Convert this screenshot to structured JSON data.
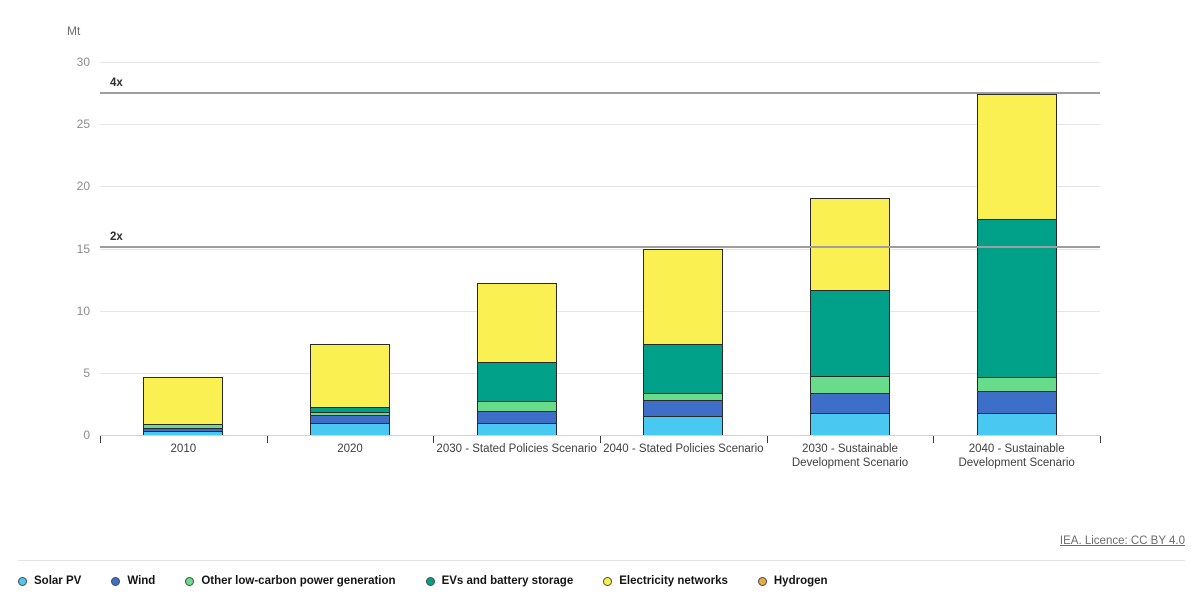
{
  "axis": {
    "unit_label": "Mt"
  },
  "footer": {
    "license_label": "IEA. Licence: CC BY 4.0"
  },
  "colors": {
    "grid": "#e6e6e6",
    "baseline": "#ccd3db",
    "reference_line": "#9e9e9e",
    "segment_border": "#2a2a2a"
  },
  "chart_data": {
    "type": "bar",
    "stacked": true,
    "title": "",
    "xlabel": "",
    "ylabel": "Mt",
    "ylim": [
      0,
      30
    ],
    "yticks": [
      0,
      5,
      10,
      15,
      20,
      25,
      30
    ],
    "grid": "horizontal",
    "legend_position": "bottom",
    "categories": [
      "2010",
      "2020",
      "2030 - Stated Policies Scenario",
      "2040 - Stated Policies Scenario",
      "2030 - Sustainable\nDevelopment Scenario",
      "2040 - Sustainable\nDevelopment Scenario"
    ],
    "series": [
      {
        "name": "Solar PV",
        "color": "#49c8f2",
        "values": [
          0.3,
          0.95,
          0.95,
          1.55,
          1.75,
          1.8
        ]
      },
      {
        "name": "Wind",
        "color": "#3d6fc9",
        "values": [
          0.3,
          0.65,
          1.0,
          1.25,
          1.6,
          1.7
        ]
      },
      {
        "name": "Other low-carbon power generation",
        "color": "#69dc8c",
        "values": [
          0.25,
          0.25,
          0.8,
          0.6,
          1.4,
          1.2
        ]
      },
      {
        "name": "EVs and battery storage",
        "color": "#00a188",
        "values": [
          0.0,
          0.4,
          3.15,
          3.95,
          6.9,
          12.7
        ]
      },
      {
        "name": "Electricity networks",
        "color": "#fbf051",
        "values": [
          3.85,
          5.05,
          6.3,
          7.65,
          7.45,
          10.0
        ]
      },
      {
        "name": "Hydrogen",
        "color": "#eca73f",
        "values": [
          0.0,
          0.0,
          0.0,
          0.0,
          0.0,
          0.0
        ]
      }
    ],
    "annotations": [
      {
        "label": "2x",
        "y": 15.1
      },
      {
        "label": "4x",
        "y": 27.5
      }
    ]
  }
}
